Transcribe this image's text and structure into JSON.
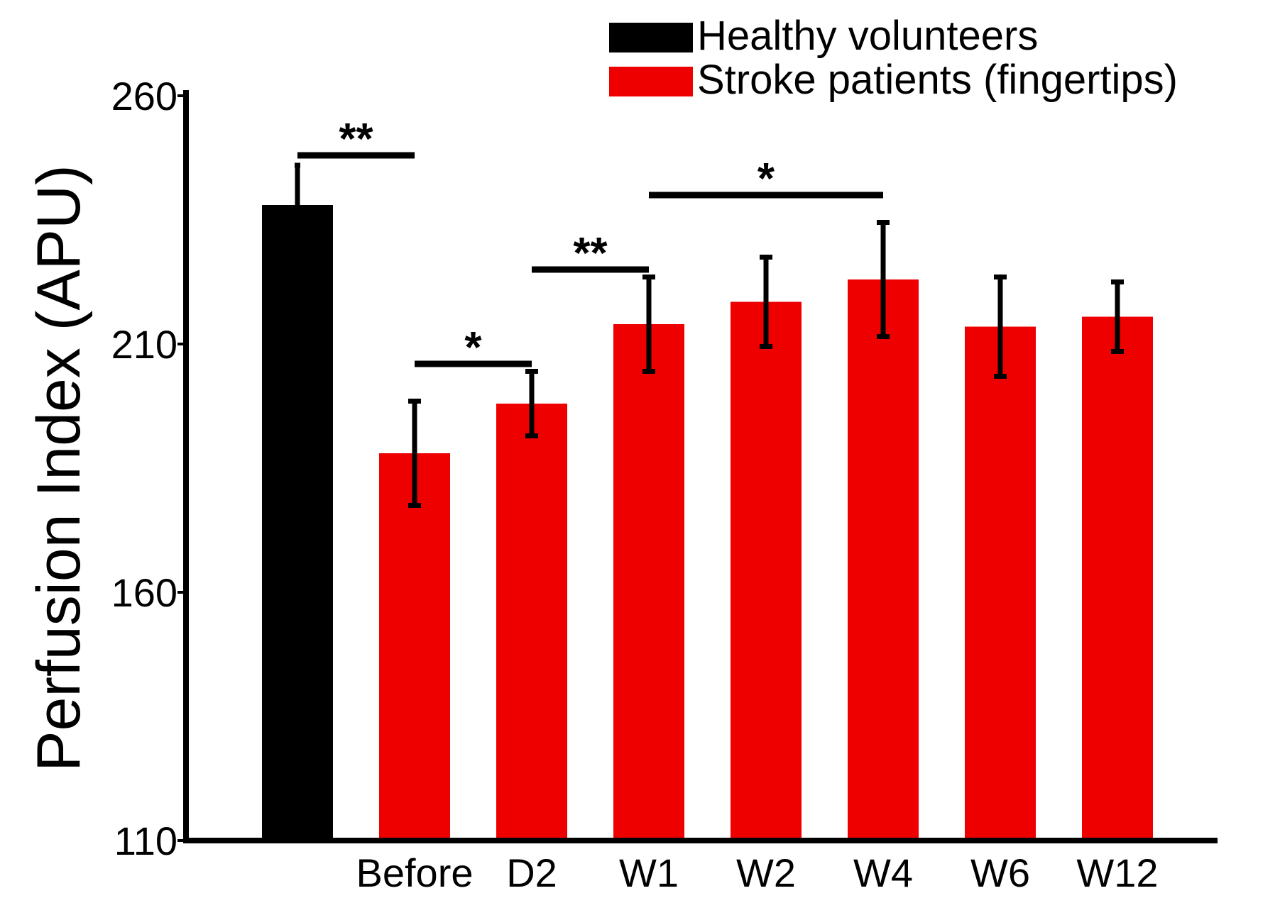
{
  "chart_data": {
    "type": "bar",
    "title": "",
    "xlabel": "",
    "ylabel": "Perfusion Index (APU)",
    "ylim": [
      110,
      260
    ],
    "yticks": [
      110,
      160,
      210,
      260
    ],
    "ytick_labels": [
      "110",
      "160",
      "210",
      "260"
    ],
    "grid": false,
    "legend_position": "top-right",
    "series": [
      {
        "name": "Healthy volunteers",
        "color": "#000000",
        "bars": [
          {
            "category": "",
            "value": 238,
            "error": 8
          }
        ]
      },
      {
        "name": "Stroke patients (fingertips)",
        "color": "#ee0000",
        "bars": [
          {
            "category": "Before",
            "value": 188,
            "error": 10.5
          },
          {
            "category": "D2",
            "value": 198,
            "error": 6.5
          },
          {
            "category": "W1",
            "value": 214,
            "error": 9.5
          },
          {
            "category": "W2",
            "value": 218.5,
            "error": 9
          },
          {
            "category": "W4",
            "value": 223,
            "error": 11.5
          },
          {
            "category": "W6",
            "value": 213.5,
            "error": 10
          },
          {
            "category": "W12",
            "value": 215.5,
            "error": 7
          }
        ]
      }
    ],
    "categories": [
      "",
      "Before",
      "D2",
      "W1",
      "W2",
      "W4",
      "W6",
      "W12"
    ],
    "significance": [
      {
        "from": 0,
        "to": 1,
        "value": 248,
        "label": "**"
      },
      {
        "from": 1,
        "to": 2,
        "value": 206,
        "label": "*"
      },
      {
        "from": 2,
        "to": 3,
        "value": 225,
        "label": "**"
      },
      {
        "from": 3,
        "to": 5,
        "value": 240,
        "label": "*"
      }
    ]
  }
}
